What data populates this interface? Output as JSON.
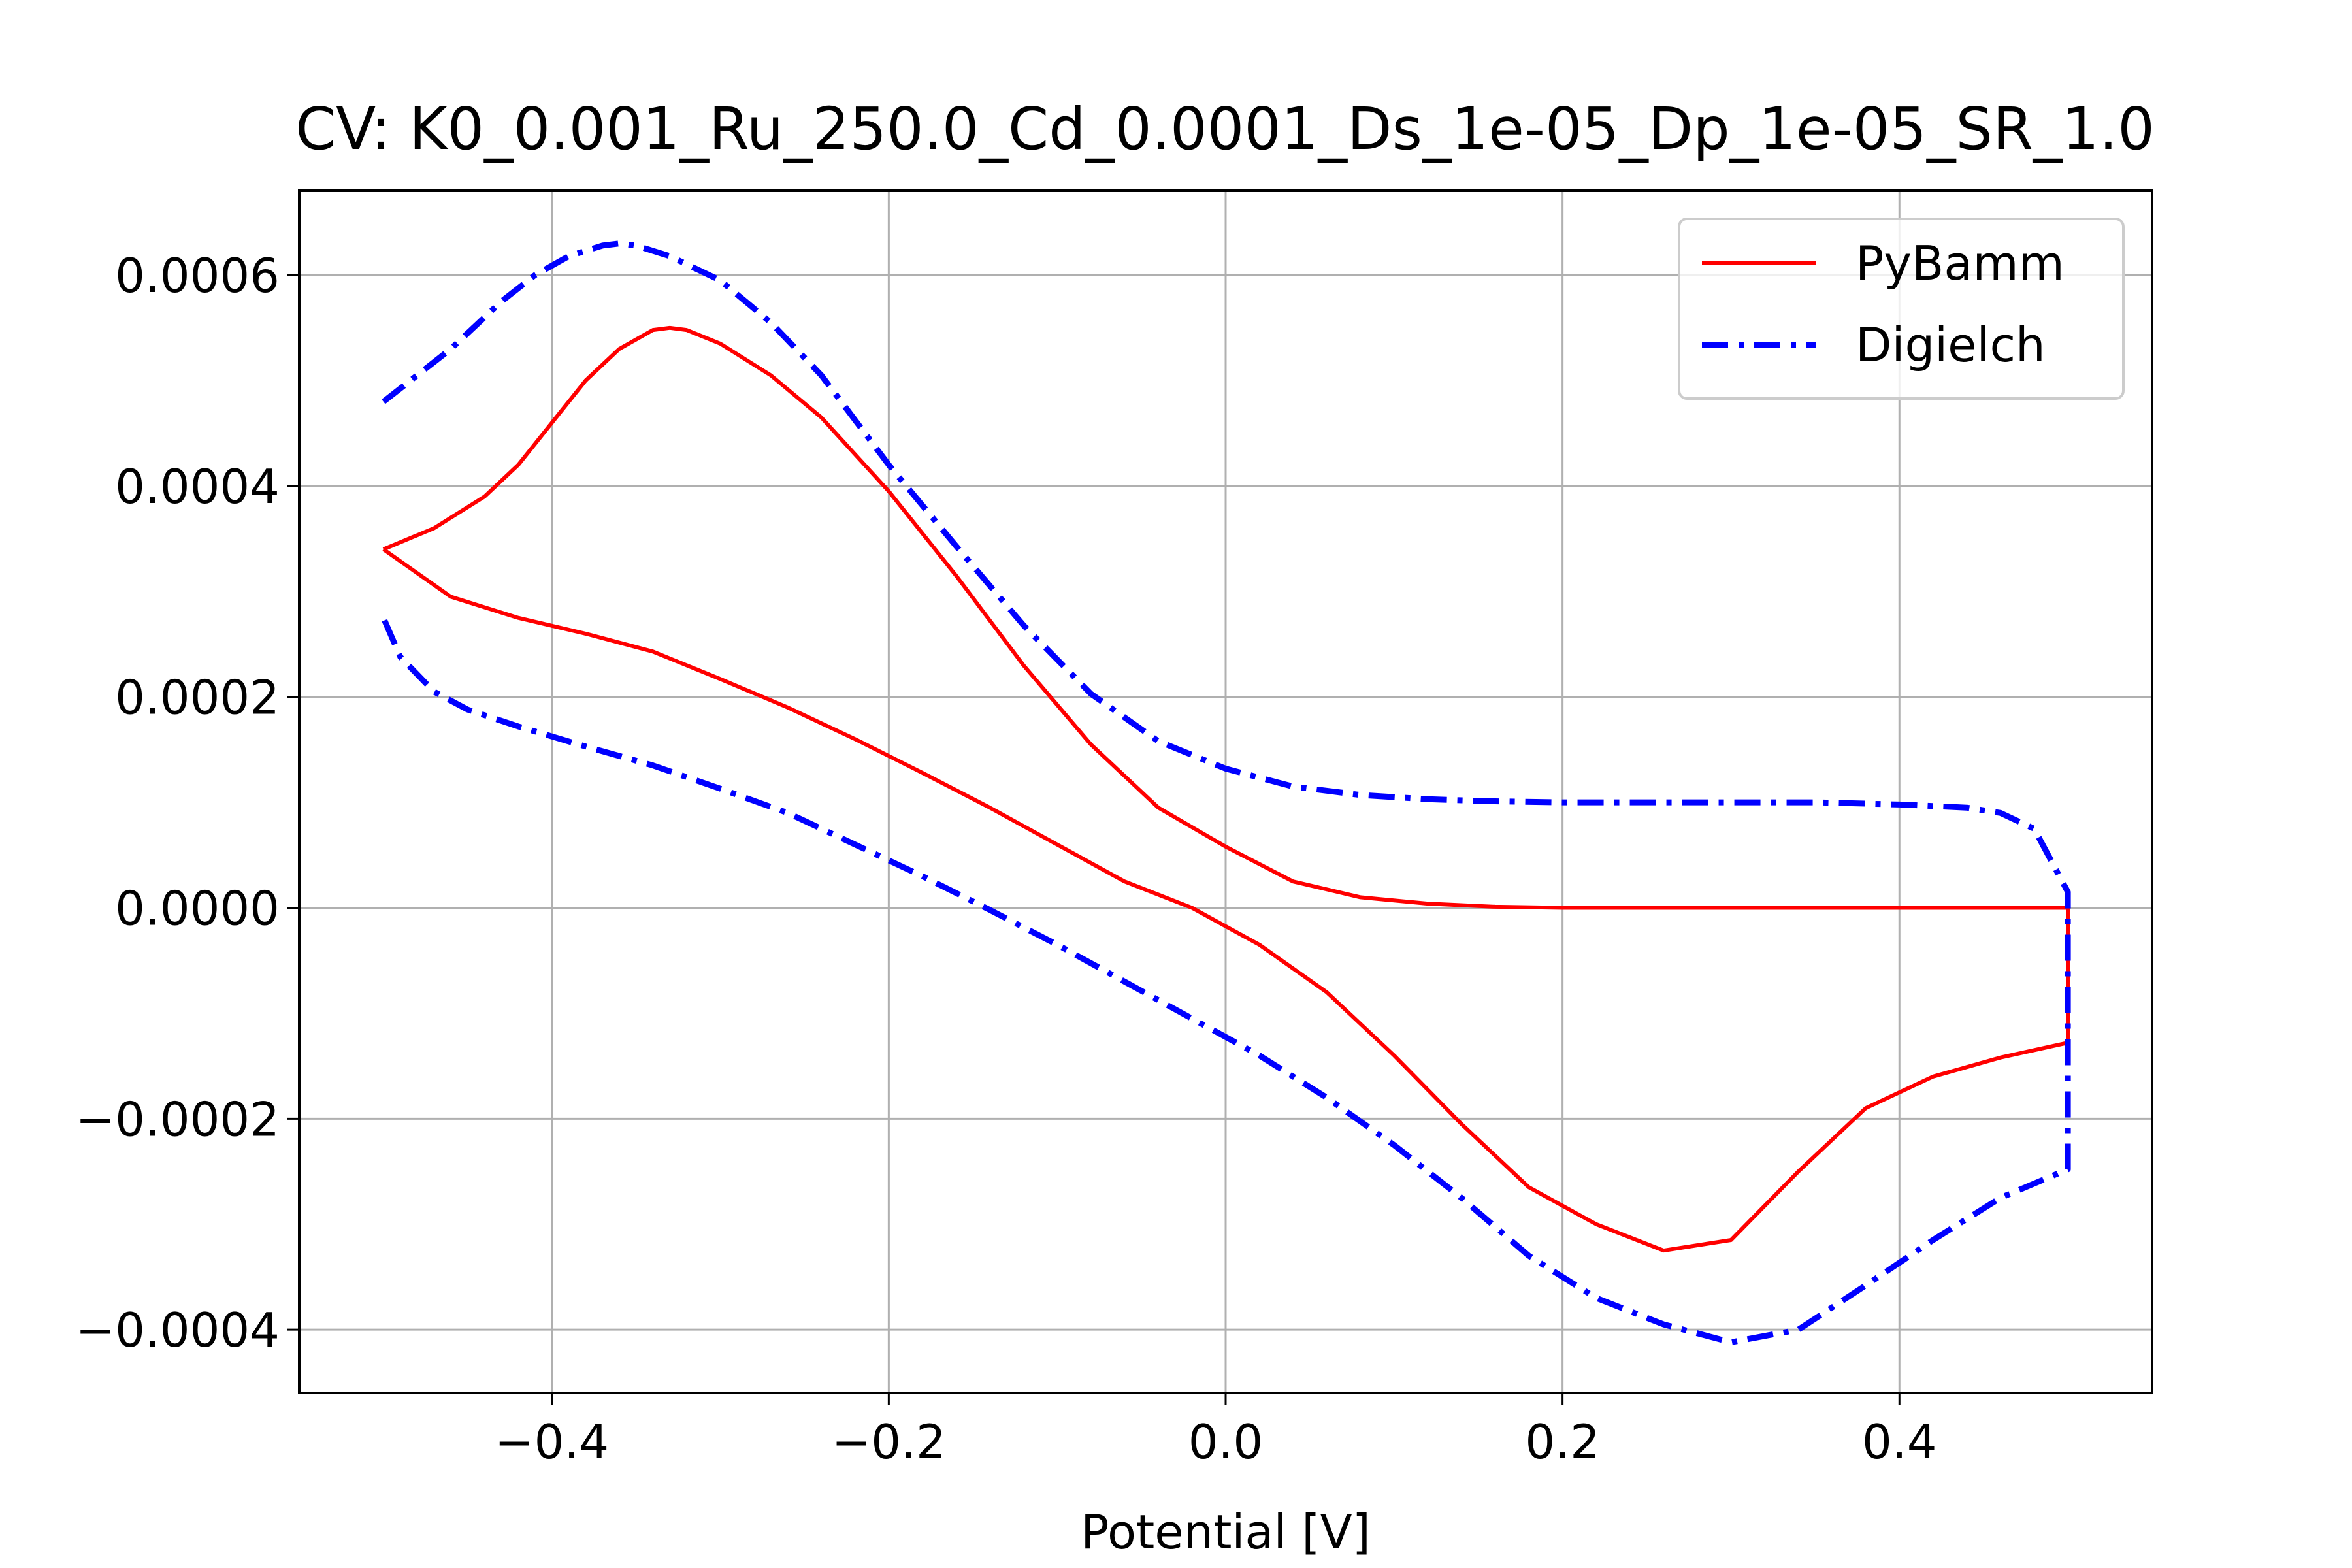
{
  "chart_data": {
    "type": "line",
    "title": "CV: K0_0.001_Ru_250.0_Cd_0.0001_Ds_1e-05_Dp_1e-05_SR_1.0",
    "xlabel": "Potential [V]",
    "ylabel": "",
    "xlim": [
      -0.55,
      0.55
    ],
    "ylim": [
      -0.00046,
      0.00068
    ],
    "xticks": [
      -0.4,
      -0.2,
      0.0,
      0.2,
      0.4
    ],
    "xtick_labels": [
      "−0.4",
      "−0.2",
      "0.0",
      "0.2",
      "0.4"
    ],
    "yticks": [
      -0.0004,
      -0.0002,
      0.0,
      0.0002,
      0.0004,
      0.0006
    ],
    "ytick_labels": [
      "−0.0004",
      "−0.0002",
      "0.0000",
      "0.0002",
      "0.0004",
      "0.0006"
    ],
    "grid": true,
    "legend_position": "top-right",
    "series": [
      {
        "name": "PyBamm",
        "color": "#ff0000",
        "style": "solid",
        "x": [
          -0.5,
          -0.47,
          -0.44,
          -0.42,
          -0.4,
          -0.38,
          -0.36,
          -0.34,
          -0.33,
          -0.32,
          -0.3,
          -0.27,
          -0.24,
          -0.2,
          -0.16,
          -0.12,
          -0.08,
          -0.04,
          0.0,
          0.04,
          0.08,
          0.12,
          0.16,
          0.2,
          0.25,
          0.3,
          0.35,
          0.4,
          0.45,
          0.5,
          0.5,
          0.46,
          0.42,
          0.38,
          0.34,
          0.3,
          0.26,
          0.22,
          0.18,
          0.14,
          0.1,
          0.06,
          0.02,
          -0.02,
          -0.06,
          -0.1,
          -0.14,
          -0.18,
          -0.22,
          -0.26,
          -0.3,
          -0.34,
          -0.38,
          -0.42,
          -0.46,
          -0.5
        ],
        "y": [
          0.00034,
          0.00036,
          0.00039,
          0.00042,
          0.00046,
          0.0005,
          0.00053,
          0.000548,
          0.00055,
          0.000548,
          0.000535,
          0.000505,
          0.000465,
          0.000395,
          0.000315,
          0.00023,
          0.000155,
          9.5e-05,
          5.8e-05,
          2.5e-05,
          1e-05,
          4e-06,
          1e-06,
          0.0,
          0.0,
          0.0,
          0.0,
          0.0,
          0.0,
          0.0,
          -0.000128,
          -0.000142,
          -0.00016,
          -0.00019,
          -0.00025,
          -0.000315,
          -0.000325,
          -0.0003,
          -0.000265,
          -0.000205,
          -0.00014,
          -8e-05,
          -3.5e-05,
          0.0,
          2.5e-05,
          6e-05,
          9.5e-05,
          0.000128,
          0.00016,
          0.00019,
          0.000217,
          0.000243,
          0.00026,
          0.000275,
          0.000295,
          0.00034
        ]
      },
      {
        "name": "Digielch",
        "color": "#0000ff",
        "style": "dashdot",
        "x": [
          -0.5,
          -0.46,
          -0.43,
          -0.41,
          -0.39,
          -0.37,
          -0.36,
          -0.35,
          -0.33,
          -0.3,
          -0.27,
          -0.24,
          -0.2,
          -0.16,
          -0.12,
          -0.08,
          -0.04,
          0.0,
          0.04,
          0.08,
          0.12,
          0.16,
          0.2,
          0.25,
          0.3,
          0.35,
          0.4,
          0.44,
          0.46,
          0.48,
          0.5,
          0.5,
          0.46,
          0.42,
          0.38,
          0.34,
          0.3,
          0.26,
          0.22,
          0.18,
          0.14,
          0.1,
          0.06,
          0.02,
          -0.02,
          -0.06,
          -0.1,
          -0.14,
          -0.18,
          -0.22,
          -0.26,
          -0.3,
          -0.34,
          -0.38,
          -0.42,
          -0.45,
          -0.47,
          -0.49,
          -0.5
        ],
        "y": [
          0.00048,
          0.00053,
          0.000575,
          0.0006,
          0.000618,
          0.000628,
          0.00063,
          0.000628,
          0.000618,
          0.000595,
          0.000555,
          0.000505,
          0.00042,
          0.000343,
          0.000268,
          0.000203,
          0.000158,
          0.000132,
          0.000115,
          0.000107,
          0.000103,
          0.000101,
          0.0001,
          0.0001,
          0.0001,
          0.0001,
          9.8e-05,
          9.5e-05,
          9e-05,
          7.5e-05,
          1.5e-05,
          -0.000248,
          -0.000275,
          -0.000315,
          -0.000358,
          -0.0004,
          -0.000412,
          -0.000395,
          -0.00037,
          -0.00033,
          -0.000275,
          -0.000225,
          -0.00018,
          -0.00014,
          -0.000105,
          -7e-05,
          -3.5e-05,
          -2e-06,
          3e-05,
          6e-05,
          9e-05,
          0.000113,
          0.000135,
          0.000153,
          0.000172,
          0.000188,
          0.000205,
          0.000238,
          0.000275
        ]
      }
    ]
  }
}
